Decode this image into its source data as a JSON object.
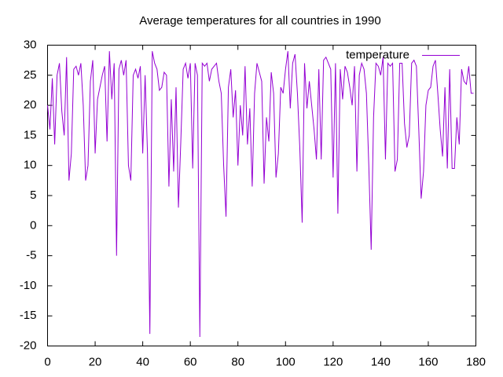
{
  "chart_data": {
    "type": "line",
    "title": "Average temperatures for all countries in 1990",
    "x": [
      0,
      1,
      2,
      3,
      4,
      5,
      6,
      7,
      8,
      9,
      10,
      11,
      12,
      13,
      14,
      15,
      16,
      17,
      18,
      19,
      20,
      21,
      22,
      23,
      24,
      25,
      26,
      27,
      28,
      29,
      30,
      31,
      32,
      33,
      34,
      35,
      36,
      37,
      38,
      39,
      40,
      41,
      42,
      43,
      44,
      45,
      46,
      47,
      48,
      49,
      50,
      51,
      52,
      53,
      54,
      55,
      56,
      57,
      58,
      59,
      60,
      61,
      62,
      63,
      64,
      65,
      66,
      67,
      68,
      69,
      70,
      71,
      72,
      73,
      74,
      75,
      76,
      77,
      78,
      79,
      80,
      81,
      82,
      83,
      84,
      85,
      86,
      87,
      88,
      89,
      90,
      91,
      92,
      93,
      94,
      95,
      96,
      97,
      98,
      99,
      100,
      101,
      102,
      103,
      104,
      105,
      106,
      107,
      108,
      109,
      110,
      111,
      112,
      113,
      114,
      115,
      116,
      117,
      118,
      119,
      120,
      121,
      122,
      123,
      124,
      125,
      126,
      127,
      128,
      129,
      130,
      131,
      132,
      133,
      134,
      135,
      136,
      137,
      138,
      139,
      140,
      141,
      142,
      143,
      144,
      145,
      146,
      147,
      148,
      149,
      150,
      151,
      152,
      153,
      154,
      155,
      156,
      157,
      158,
      159,
      160,
      161,
      162,
      163,
      164,
      165,
      166,
      167,
      168,
      169,
      170,
      171,
      172,
      173,
      174,
      175,
      176,
      177,
      178,
      179
    ],
    "series": [
      {
        "name": "temperature",
        "color": "#9400d3",
        "values": [
          20,
          16,
          24.5,
          13.5,
          25,
          27,
          19,
          15,
          28,
          7.5,
          12,
          26,
          26.5,
          25,
          27,
          20,
          7.5,
          10,
          24,
          27.5,
          12,
          21,
          23,
          25,
          26.5,
          14,
          29,
          21,
          27,
          -5,
          26,
          27.5,
          25,
          27.5,
          10,
          7.5,
          25,
          26,
          24.5,
          26.5,
          12,
          25,
          12,
          -18,
          29,
          27,
          26,
          22.5,
          23,
          25.5,
          25,
          6.5,
          21,
          9,
          23,
          3,
          14,
          26,
          27,
          24.5,
          27,
          9.5,
          27,
          25,
          -18.5,
          27,
          26.5,
          27,
          24,
          26,
          26.5,
          27,
          24,
          22,
          10,
          1.5,
          23,
          26,
          18,
          22.5,
          10,
          20,
          15,
          26.5,
          13.5,
          19.5,
          6.5,
          22,
          27,
          25.5,
          24,
          7,
          18,
          14,
          25.5,
          22,
          8,
          12,
          23,
          22,
          26,
          29,
          19.5,
          27,
          28.5,
          22,
          13,
          0.5,
          27,
          19.5,
          24,
          20,
          16,
          11,
          26,
          11,
          27.5,
          28,
          27,
          26,
          8,
          27,
          2,
          26,
          21,
          26.5,
          25.5,
          23,
          20,
          26.5,
          9,
          25,
          27,
          26,
          22,
          10,
          -4,
          18,
          27,
          26.5,
          25,
          28,
          11,
          27,
          26.5,
          27,
          9,
          11,
          27,
          27,
          17,
          13,
          15,
          27,
          27.5,
          26.5,
          16,
          4.5,
          9,
          20,
          22.5,
          23,
          26.5,
          27.5,
          22,
          16,
          11.5,
          23,
          9.5,
          26,
          9.5,
          9.5,
          18,
          13.5,
          26,
          24,
          23.5,
          26.5,
          22,
          22
        ]
      }
    ],
    "xlim": [
      0,
      180
    ],
    "ylim": [
      -20,
      30
    ],
    "xticks": [
      0,
      20,
      40,
      60,
      80,
      100,
      120,
      140,
      160,
      180
    ],
    "yticks": [
      -20,
      -15,
      -10,
      -5,
      0,
      5,
      10,
      15,
      20,
      25,
      30
    ],
    "legend": "top-right"
  }
}
